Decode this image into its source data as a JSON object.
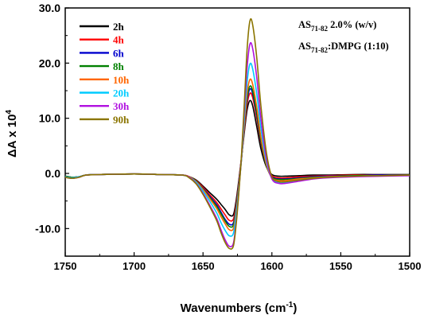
{
  "chart_data": {
    "type": "line",
    "xlabel": "Wavenumbers (cm",
    "xlabel_sup": "-1",
    "xlabel_end": ")",
    "ylabel": "ΔA x 10",
    "ylabel_sup": "4",
    "xlim": [
      1750,
      1500
    ],
    "ylim": [
      -15,
      30
    ],
    "x_reversed": true,
    "x_ticks": [
      "1750",
      "1700",
      "1650",
      "1600",
      "1550",
      "1500"
    ],
    "y_ticks": [
      "30.0",
      "20.0",
      "10.0",
      "0.0",
      "-10.0"
    ],
    "annotations": [
      {
        "pre": "AS",
        "sub": "71-82",
        "post": " 2.0% (w/v)"
      },
      {
        "pre": "AS",
        "sub": "71-82",
        "post": ":DMPG (1:10)"
      }
    ],
    "legend_position": "top-left",
    "x": [
      1750,
      1745,
      1740,
      1735,
      1725,
      1700,
      1680,
      1665,
      1660,
      1655,
      1650,
      1645,
      1640,
      1637,
      1634,
      1631,
      1628,
      1626,
      1624,
      1622,
      1620,
      1618,
      1616,
      1614,
      1611,
      1608,
      1604,
      1600,
      1595,
      1590,
      1580,
      1570,
      1560,
      1540,
      1520,
      1500
    ],
    "series": [
      {
        "name": "2h",
        "color": "#000000",
        "y": [
          -0.5,
          -0.7,
          -0.6,
          -0.3,
          -0.2,
          -0.1,
          -0.2,
          -0.3,
          -0.6,
          -1.2,
          -2.3,
          -3.5,
          -4.7,
          -5.6,
          -6.5,
          -7.5,
          -7.5,
          -5.0,
          -1.2,
          3.0,
          7.5,
          11.5,
          13.2,
          12.3,
          8.5,
          4.5,
          1.2,
          -0.2,
          -0.5,
          -0.5,
          -0.4,
          -0.3,
          -0.3,
          -0.2,
          -0.2,
          -0.2
        ]
      },
      {
        "name": "4h",
        "color": "#ff0000",
        "y": [
          -0.5,
          -0.7,
          -0.6,
          -0.3,
          -0.2,
          -0.1,
          -0.2,
          -0.3,
          -0.6,
          -1.3,
          -2.5,
          -3.9,
          -5.3,
          -6.4,
          -7.5,
          -8.5,
          -8.3,
          -5.6,
          -1.6,
          3.0,
          8.0,
          12.5,
          14.5,
          13.8,
          10.0,
          5.5,
          1.5,
          -0.4,
          -0.8,
          -0.8,
          -0.6,
          -0.5,
          -0.4,
          -0.3,
          -0.3,
          -0.3
        ]
      },
      {
        "name": "6h",
        "color": "#0000cd",
        "y": [
          -0.5,
          -0.7,
          -0.6,
          -0.3,
          -0.2,
          -0.1,
          -0.2,
          -0.3,
          -0.6,
          -1.4,
          -2.7,
          -4.2,
          -5.7,
          -7.0,
          -8.3,
          -9.2,
          -9.0,
          -6.1,
          -1.9,
          2.8,
          8.4,
          13.2,
          15.3,
          14.5,
          10.6,
          5.8,
          1.4,
          -0.6,
          -1.0,
          -1.0,
          -0.8,
          -0.6,
          -0.5,
          -0.4,
          -0.3,
          -0.3
        ]
      },
      {
        "name": "8h",
        "color": "#008000",
        "y": [
          -0.5,
          -0.7,
          -0.6,
          -0.3,
          -0.2,
          -0.1,
          -0.2,
          -0.3,
          -0.6,
          -1.4,
          -2.8,
          -4.4,
          -6.0,
          -7.3,
          -8.6,
          -9.6,
          -9.4,
          -6.4,
          -2.1,
          2.8,
          8.6,
          13.7,
          15.8,
          15.0,
          11.0,
          6.0,
          1.4,
          -0.7,
          -1.1,
          -1.1,
          -0.9,
          -0.7,
          -0.6,
          -0.4,
          -0.4,
          -0.3
        ]
      },
      {
        "name": "10h",
        "color": "#ff6600",
        "y": [
          -0.6,
          -0.8,
          -0.6,
          -0.3,
          -0.2,
          -0.1,
          -0.2,
          -0.3,
          -0.6,
          -1.5,
          -2.9,
          -4.6,
          -6.4,
          -7.8,
          -9.1,
          -10.2,
          -10.0,
          -6.9,
          -2.4,
          2.7,
          8.9,
          14.5,
          17.0,
          16.2,
          12.0,
          6.6,
          1.6,
          -0.8,
          -1.3,
          -1.3,
          -1.0,
          -0.8,
          -0.6,
          -0.5,
          -0.4,
          -0.4
        ]
      },
      {
        "name": "20h",
        "color": "#00ccff",
        "y": [
          -0.6,
          -0.8,
          -0.6,
          -0.3,
          -0.2,
          -0.1,
          -0.2,
          -0.3,
          -0.7,
          -1.6,
          -3.2,
          -5.1,
          -7.2,
          -8.9,
          -10.3,
          -11.3,
          -10.9,
          -7.6,
          -2.8,
          2.9,
          10.0,
          16.5,
          19.8,
          19.0,
          14.4,
          8.2,
          2.2,
          -0.9,
          -1.6,
          -1.6,
          -1.2,
          -0.9,
          -0.7,
          -0.5,
          -0.4,
          -0.4
        ]
      },
      {
        "name": "30h",
        "color": "#b010e0",
        "y": [
          -0.7,
          -0.9,
          -0.7,
          -0.3,
          -0.2,
          -0.1,
          -0.2,
          -0.3,
          -0.7,
          -1.8,
          -3.6,
          -5.8,
          -8.2,
          -10.2,
          -12.0,
          -13.2,
          -12.7,
          -8.9,
          -3.3,
          3.3,
          11.5,
          19.2,
          23.4,
          22.7,
          17.4,
          10.0,
          2.8,
          -1.0,
          -1.8,
          -1.8,
          -1.4,
          -1.0,
          -0.8,
          -0.6,
          -0.5,
          -0.4
        ]
      },
      {
        "name": "90h",
        "color": "#8b7500",
        "y": [
          -0.7,
          -0.9,
          -0.7,
          -0.3,
          -0.2,
          -0.1,
          -0.2,
          -0.3,
          -0.8,
          -1.9,
          -3.8,
          -6.1,
          -8.6,
          -10.7,
          -12.5,
          -13.6,
          -13.2,
          -9.4,
          -3.5,
          3.6,
          12.8,
          22.5,
          27.6,
          27.0,
          21.0,
          12.3,
          3.8,
          -0.6,
          -1.5,
          -1.5,
          -1.2,
          -0.9,
          -0.7,
          -0.5,
          -0.4,
          -0.3
        ]
      }
    ]
  }
}
